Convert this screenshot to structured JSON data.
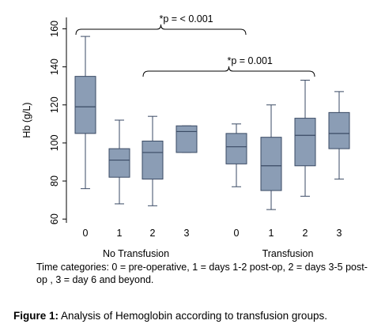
{
  "chart_data": {
    "type": "box",
    "ylabel": "Hb (g/L)",
    "ylim": [
      58,
      166
    ],
    "yticks": [
      60,
      80,
      100,
      120,
      140,
      160
    ],
    "groups": [
      {
        "name": "No Transfusion",
        "categories": [
          "0",
          "1",
          "2",
          "3"
        ]
      },
      {
        "name": "Transfusion",
        "categories": [
          "0",
          "1",
          "2",
          "3"
        ]
      }
    ],
    "boxes": [
      {
        "group": "No Transfusion",
        "category": "0",
        "min": 76,
        "q1": 105,
        "median": 119,
        "q3": 135,
        "max": 156
      },
      {
        "group": "No Transfusion",
        "category": "1",
        "min": 68,
        "q1": 82,
        "median": 91,
        "q3": 97,
        "max": 112
      },
      {
        "group": "No Transfusion",
        "category": "2",
        "min": 67,
        "q1": 81,
        "median": 95,
        "q3": 101,
        "max": 114
      },
      {
        "group": "No Transfusion",
        "category": "3",
        "min": 95,
        "q1": 95,
        "median": 106,
        "q3": 109,
        "max": 109
      },
      {
        "group": "Transfusion",
        "category": "0",
        "min": 77,
        "q1": 89,
        "median": 98,
        "q3": 105,
        "max": 110
      },
      {
        "group": "Transfusion",
        "category": "1",
        "min": 65,
        "q1": 75,
        "median": 88,
        "q3": 103,
        "max": 120
      },
      {
        "group": "Transfusion",
        "category": "2",
        "min": 72,
        "q1": 88,
        "median": 104,
        "q3": 113,
        "max": 133
      },
      {
        "group": "Transfusion",
        "category": "3",
        "min": 81,
        "q1": 97,
        "median": 105,
        "q3": 116,
        "max": 127
      }
    ],
    "annotations": [
      {
        "text": "*p = < 0.001",
        "from_box": 0,
        "to_box": 4
      },
      {
        "text": "*p = 0.001",
        "from_box": 2,
        "to_box": 6
      }
    ],
    "colors": {
      "box_fill": "#8b9db5",
      "box_stroke": "#3a4a64",
      "axis": "#000000"
    }
  },
  "caption": "Time categories:  0 = pre-operative, 1 = days 1-2 post-op, 2 = days 3-5 post-op , 3 = day 6 and beyond.",
  "figure_caption": {
    "label": "Figure 1:",
    "text": " Analysis of Hemoglobin according to transfusion groups."
  }
}
